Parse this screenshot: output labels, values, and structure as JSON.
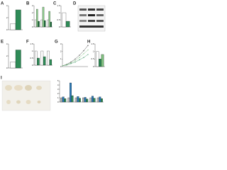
{
  "chart_data": [
    {
      "type": "bar",
      "panel": "A",
      "categories": [
        null
      ],
      "series": [
        {
          "color": "#ffffff",
          "values": [
            1
          ]
        },
        {
          "color": "#2e8b57",
          "values": [
            3.3
          ]
        }
      ],
      "ylim": [
        0,
        4
      ],
      "yticks": [
        0,
        2,
        4
      ]
    },
    {
      "type": "bar",
      "panel": "B",
      "categories": [
        null,
        null,
        null
      ],
      "series": [
        {
          "color": "#ffffff",
          "values": [
            1,
            1,
            1
          ]
        },
        {
          "color": "#8fd18f",
          "values": [
            2.5,
            2.8,
            2.2
          ]
        },
        {
          "color": "#1f6f3f",
          "values": [
            0.8,
            0.9,
            0.7
          ]
        }
      ],
      "ylim": [
        0,
        3
      ],
      "yticks": [
        0,
        1,
        2,
        3
      ]
    },
    {
      "type": "bar",
      "panel": "C",
      "categories": [
        null
      ],
      "series": [
        {
          "color": "#ffffff",
          "values": [
            1
          ]
        },
        {
          "color": "#2e8b57",
          "values": [
            0.4
          ]
        }
      ],
      "ylim": [
        0,
        1.5
      ],
      "yticks": [
        0,
        0.5,
        1,
        1.5
      ]
    },
    {
      "type": "bar",
      "panel": "E",
      "categories": [
        null
      ],
      "series": [
        {
          "color": "#ffffff",
          "values": [
            1
          ]
        },
        {
          "color": "#2e8b57",
          "values": [
            3
          ]
        }
      ],
      "ylim": [
        0,
        4
      ],
      "yticks": [
        0,
        2,
        4
      ]
    },
    {
      "type": "bar",
      "panel": "F",
      "categories": [
        null,
        null,
        null
      ],
      "series": [
        {
          "color": "#ffffff",
          "values": [
            1,
            1,
            1
          ]
        },
        {
          "color": "#2e8b57",
          "values": [
            0.5,
            0.6,
            0.4
          ]
        }
      ],
      "ylim": [
        0,
        1.5
      ],
      "yticks": [
        0,
        0.5,
        1,
        1.5
      ]
    },
    {
      "type": "line",
      "panel": "G",
      "x": [
        0,
        1,
        2,
        3,
        4,
        5,
        6
      ],
      "series": [
        {
          "color": "#333333",
          "values": [
            0.1,
            0.3,
            0.6,
            1.0,
            1.5,
            2.1,
            2.8
          ]
        },
        {
          "color": "#2e8b57",
          "values": [
            0.1,
            0.2,
            0.4,
            0.6,
            0.9,
            1.2,
            1.6
          ]
        },
        {
          "color": "#7fbf7f",
          "values": [
            0.1,
            0.25,
            0.5,
            0.8,
            1.2,
            1.7,
            2.2
          ]
        }
      ],
      "xlim": [
        0,
        6
      ],
      "ylim": [
        0,
        3
      ],
      "yticks": [
        0,
        1,
        2,
        3
      ]
    },
    {
      "type": "bar",
      "panel": "H",
      "categories": [
        null
      ],
      "series": [
        {
          "color": "#ffffff",
          "values": [
            1
          ]
        },
        {
          "color": "#2e8b57",
          "values": [
            0.5
          ]
        },
        {
          "color": "#7fbf7f",
          "values": [
            0.8
          ]
        }
      ],
      "ylim": [
        0,
        1.5
      ],
      "yticks": [
        0,
        0.5,
        1,
        1.5
      ]
    },
    {
      "type": "bar",
      "panel": "I",
      "categories": [
        null,
        null,
        null,
        null,
        null,
        null
      ],
      "series": [
        {
          "color": "#bbbbbb",
          "values": [
            1,
            1,
            1,
            1,
            1,
            1
          ]
        },
        {
          "color": "#2b7bb9",
          "values": [
            1.2,
            4.5,
            1.3,
            1.1,
            1.4,
            1.2
          ]
        },
        {
          "color": "#2e8b57",
          "values": [
            0.8,
            1.5,
            0.9,
            0.7,
            0.9,
            0.8
          ]
        }
      ],
      "ylim": [
        0,
        5
      ],
      "yticks": [
        0,
        1,
        2,
        3,
        4,
        5
      ]
    }
  ],
  "blot": {
    "panel": "D"
  },
  "photo": {
    "panel": "I"
  }
}
